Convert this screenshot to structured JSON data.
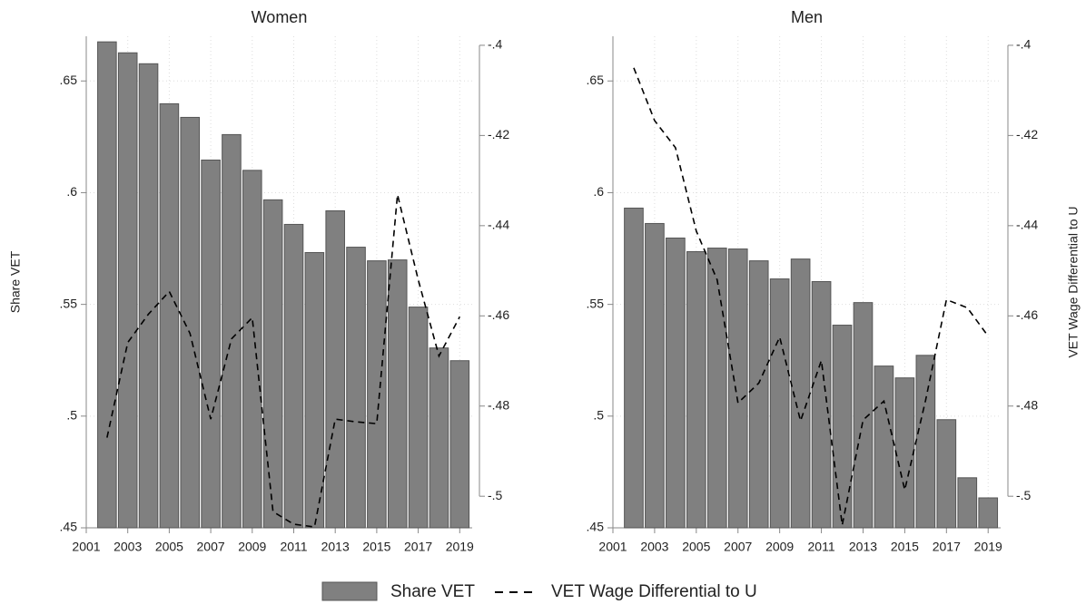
{
  "chart_data": [
    {
      "type": "bar",
      "title": "Women",
      "ylabel": "Share VET",
      "x": [
        2002,
        2003,
        2004,
        2005,
        2006,
        2007,
        2008,
        2009,
        2010,
        2011,
        2012,
        2013,
        2014,
        2015,
        2016,
        2017,
        2018,
        2019
      ],
      "series": [
        {
          "name": "Share VET",
          "type": "bar",
          "color": "#808080",
          "values": [
            0.6675,
            0.6626,
            0.6577,
            0.6398,
            0.6337,
            0.6146,
            0.626,
            0.61,
            0.5968,
            0.5858,
            0.5732,
            0.5919,
            0.5756,
            0.5695,
            0.5699,
            0.5488,
            0.5305,
            0.5248
          ]
        },
        {
          "name": "VET Wage Differential to U",
          "type": "line",
          "axis": "y2",
          "color": "#000000",
          "values": [
            -0.487,
            -0.4659,
            -0.4596,
            -0.4546,
            -0.4639,
            -0.4829,
            -0.4651,
            -0.4604,
            -0.5034,
            -0.5062,
            -0.5068,
            -0.4829,
            -0.4835,
            -0.4839,
            -0.4331,
            -0.452,
            -0.4689,
            -0.4602
          ]
        }
      ],
      "xlim": [
        2001,
        2019.6
      ],
      "xticks": [
        2001,
        2003,
        2005,
        2007,
        2009,
        2011,
        2013,
        2015,
        2017,
        2019
      ],
      "ylim": [
        0.45,
        0.67
      ],
      "yticks": [
        {
          "value": 0.45,
          "label": ".45"
        },
        {
          "value": 0.5,
          "label": ".5"
        },
        {
          "value": 0.55,
          "label": ".55"
        },
        {
          "value": 0.6,
          "label": ".6"
        },
        {
          "value": 0.65,
          "label": ".65"
        }
      ],
      "y2lim": [
        -0.507,
        -0.398
      ],
      "y2ticks": [
        {
          "value": -0.5,
          "label": "-.5"
        },
        {
          "value": -0.48,
          "label": "-.48"
        },
        {
          "value": -0.46,
          "label": "-.46"
        },
        {
          "value": -0.44,
          "label": "-.44"
        },
        {
          "value": -0.42,
          "label": "-.42"
        },
        {
          "value": -0.4,
          "label": "-.4"
        }
      ],
      "grid": true,
      "legend": "bottom"
    },
    {
      "type": "bar",
      "title": "Men",
      "y2label": "VET Wage Differential to U",
      "x": [
        2002,
        2003,
        2004,
        2005,
        2006,
        2007,
        2008,
        2009,
        2010,
        2011,
        2012,
        2013,
        2014,
        2015,
        2016,
        2017,
        2018,
        2019
      ],
      "series": [
        {
          "name": "Share VET",
          "type": "bar",
          "color": "#808080",
          "values": [
            0.5931,
            0.5862,
            0.5797,
            0.5736,
            0.5752,
            0.5748,
            0.5695,
            0.5614,
            0.5703,
            0.5602,
            0.5407,
            0.5508,
            0.5224,
            0.5171,
            0.5272,
            0.4984,
            0.4724,
            0.4634
          ]
        },
        {
          "name": "VET Wage Differential to U",
          "type": "line",
          "axis": "y2",
          "color": "#000000",
          "values": [
            -0.405,
            -0.4167,
            -0.4227,
            -0.4412,
            -0.452,
            -0.4793,
            -0.4749,
            -0.4647,
            -0.4833,
            -0.4699,
            -0.5064,
            -0.4831,
            -0.4789,
            -0.4986,
            -0.4787,
            -0.4564,
            -0.4582,
            -0.4645
          ]
        }
      ],
      "xlim": [
        2001,
        2019.6
      ],
      "xticks": [
        2001,
        2003,
        2005,
        2007,
        2009,
        2011,
        2013,
        2015,
        2017,
        2019
      ],
      "ylim": [
        0.45,
        0.67
      ],
      "yticks": [
        {
          "value": 0.45,
          "label": ".45"
        },
        {
          "value": 0.5,
          "label": ".5"
        },
        {
          "value": 0.55,
          "label": ".55"
        },
        {
          "value": 0.6,
          "label": ".6"
        },
        {
          "value": 0.65,
          "label": ".65"
        }
      ],
      "y2lim": [
        -0.507,
        -0.398
      ],
      "y2ticks": [
        {
          "value": -0.5,
          "label": "-.5"
        },
        {
          "value": -0.48,
          "label": "-.48"
        },
        {
          "value": -0.46,
          "label": "-.46"
        },
        {
          "value": -0.44,
          "label": "-.44"
        },
        {
          "value": -0.42,
          "label": "-.42"
        },
        {
          "value": -0.4,
          "label": "-.4"
        }
      ],
      "grid": true
    }
  ]
}
